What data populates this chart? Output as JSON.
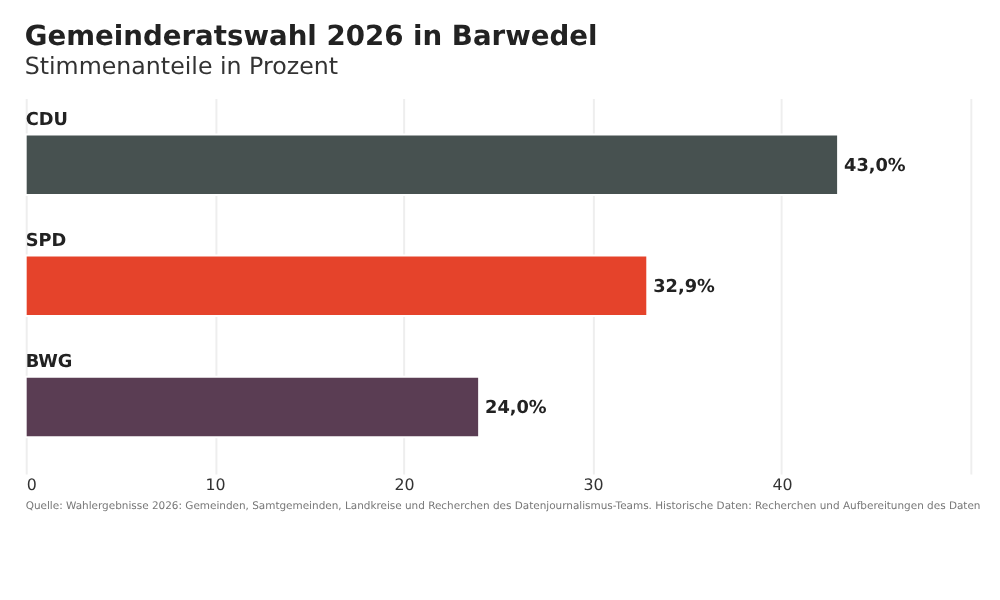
{
  "chart_data": {
    "type": "bar",
    "orientation": "horizontal",
    "title": "Gemeinderatswahl 2026 in Barwedel",
    "subtitle": "Stimmenanteile in Prozent",
    "categories": [
      "CDU",
      "SPD",
      "BWG"
    ],
    "values": [
      43.0,
      32.9,
      24.0
    ],
    "colors": [
      "#475150",
      "#e5432b",
      "#5a3d53"
    ],
    "value_labels": [
      "43,0%",
      "32,9%",
      "24,0%"
    ],
    "xlim": [
      0,
      50
    ],
    "xticks": [
      0,
      10,
      20,
      30,
      40,
      {
        "value": 50,
        "label": null
      }
    ],
    "grid": "x",
    "annotations": [
      "Quelle: Wahlergebnisse 2026: Gemeinden, Samtgemeinden, Landkreise und Recherchen des Datenjournalismus-Teams. Historische Daten: Recherchen und Aufbereitungen des Daten"
    ]
  }
}
